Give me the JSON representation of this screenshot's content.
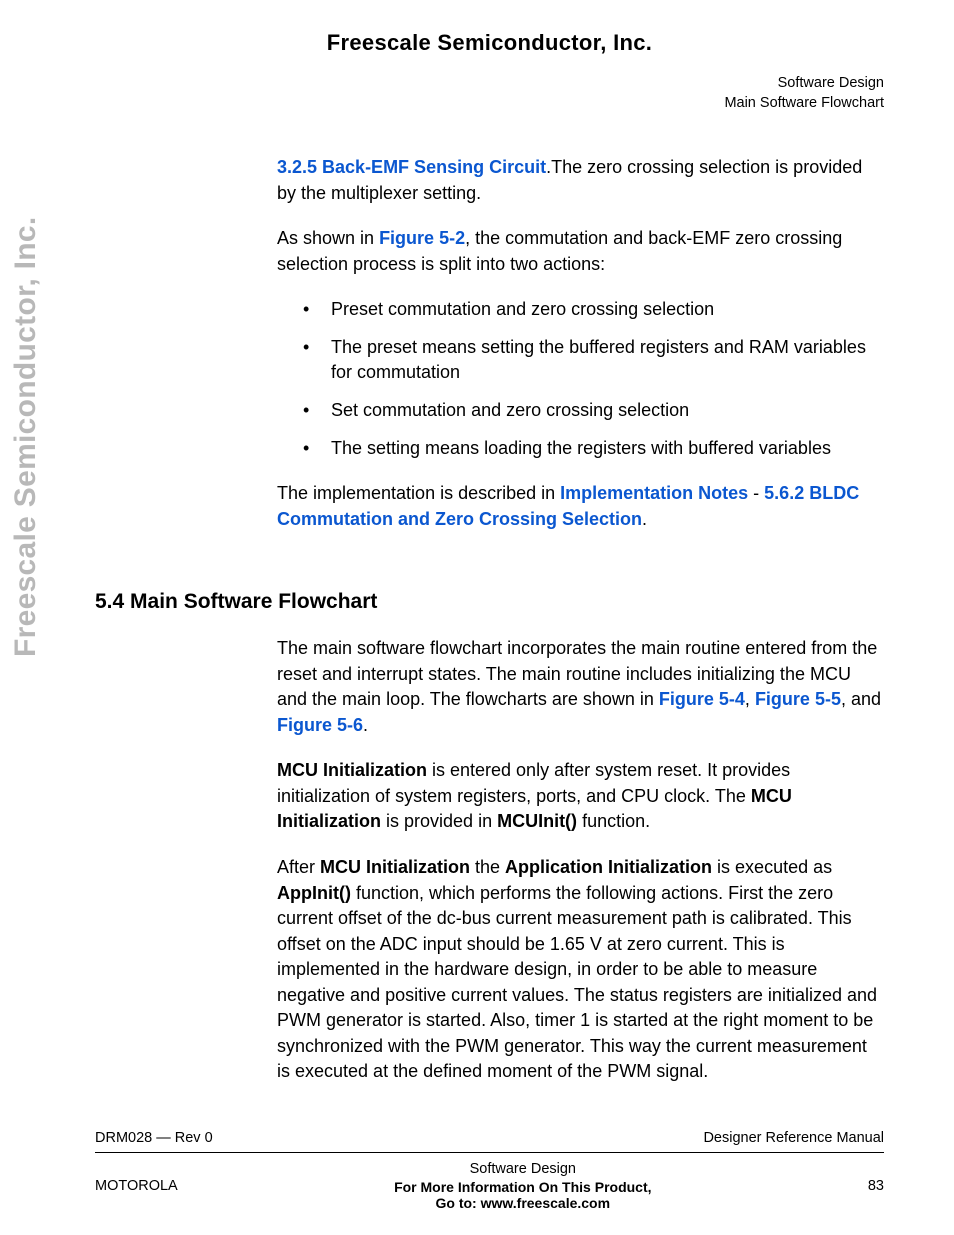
{
  "company": "Freescale Semiconductor, Inc.",
  "header_right_line1": "Software Design",
  "header_right_line2": "Main Software Flowchart",
  "sidebar": "Freescale Semiconductor, Inc.",
  "body": {
    "p1_link": "3.2.5 Back-EMF Sensing Circuit",
    "p1_text": ".The zero crossing selection is provided by the multiplexer setting.",
    "p2_pre": "As shown in ",
    "p2_link": "Figure 5-2",
    "p2_post": ", the commutation and back-EMF zero crossing selection process is split into two actions:",
    "bullets": [
      "Preset commutation and zero crossing selection",
      "The preset means setting the buffered registers and RAM variables for commutation",
      "Set commutation and zero crossing selection",
      "The setting means loading the registers with buffered variables"
    ],
    "p3_pre": "The implementation is described in ",
    "p3_link1": "Implementation Notes",
    "p3_mid": " - ",
    "p3_link2": "5.6.2 BLDC Commutation and Zero Crossing Selection",
    "p3_post": ".",
    "heading": "5.4  Main Software Flowchart",
    "p4_pre": "The main software flowchart incorporates the main routine entered from the reset and interrupt states. The main routine includes initializing the MCU and the main loop. The flowcharts are shown in ",
    "p4_link1": "Figure 5-4",
    "p4_mid1": ", ",
    "p4_link2": "Figure 5-5",
    "p4_mid2": ", and ",
    "p4_link3": "Figure 5-6",
    "p4_post": ".",
    "p5_b1": "MCU Initialization",
    "p5_t1": " is entered only after system reset. It provides initialization of system registers, ports, and CPU clock. The ",
    "p5_b2": "MCU Initialization",
    "p5_t2": " is provided in ",
    "p5_b3": "MCUInit()",
    "p5_t3": " function.",
    "p6_t1": "After ",
    "p6_b1": "MCU Initialization",
    "p6_t2": " the ",
    "p6_b2": "Application Initialization",
    "p6_t3": " is executed as ",
    "p6_b3": "AppInit()",
    "p6_t4": " function, which performs the following actions. First the zero current offset of the dc-bus current measurement path is calibrated. This offset on the ADC input should be 1.65 V at zero current. This is implemented in the hardware design, in order to be able to measure negative and positive current values. The status registers are initialized and PWM generator is started. Also, timer 1 is started at the right moment to be synchronized with the PWM generator. This way the current measurement is executed at the defined moment of the PWM signal."
  },
  "footer": {
    "rev": "DRM028 — Rev 0",
    "manual": "Designer Reference Manual",
    "brand": "MOTOROLA",
    "section": "Software Design",
    "page": "83",
    "more1": "For More Information On This Product,",
    "more2": "Go to: www.freescale.com"
  },
  "colors": {
    "link": "#0b57d0",
    "sidebar_gray": "#b8b8b8",
    "text": "#000000",
    "background": "#ffffff"
  },
  "typography": {
    "body_fontsize": 18,
    "heading_fontsize": 21,
    "company_fontsize": 22,
    "sidebar_fontsize": 30,
    "footer_fontsize": 14.5
  }
}
